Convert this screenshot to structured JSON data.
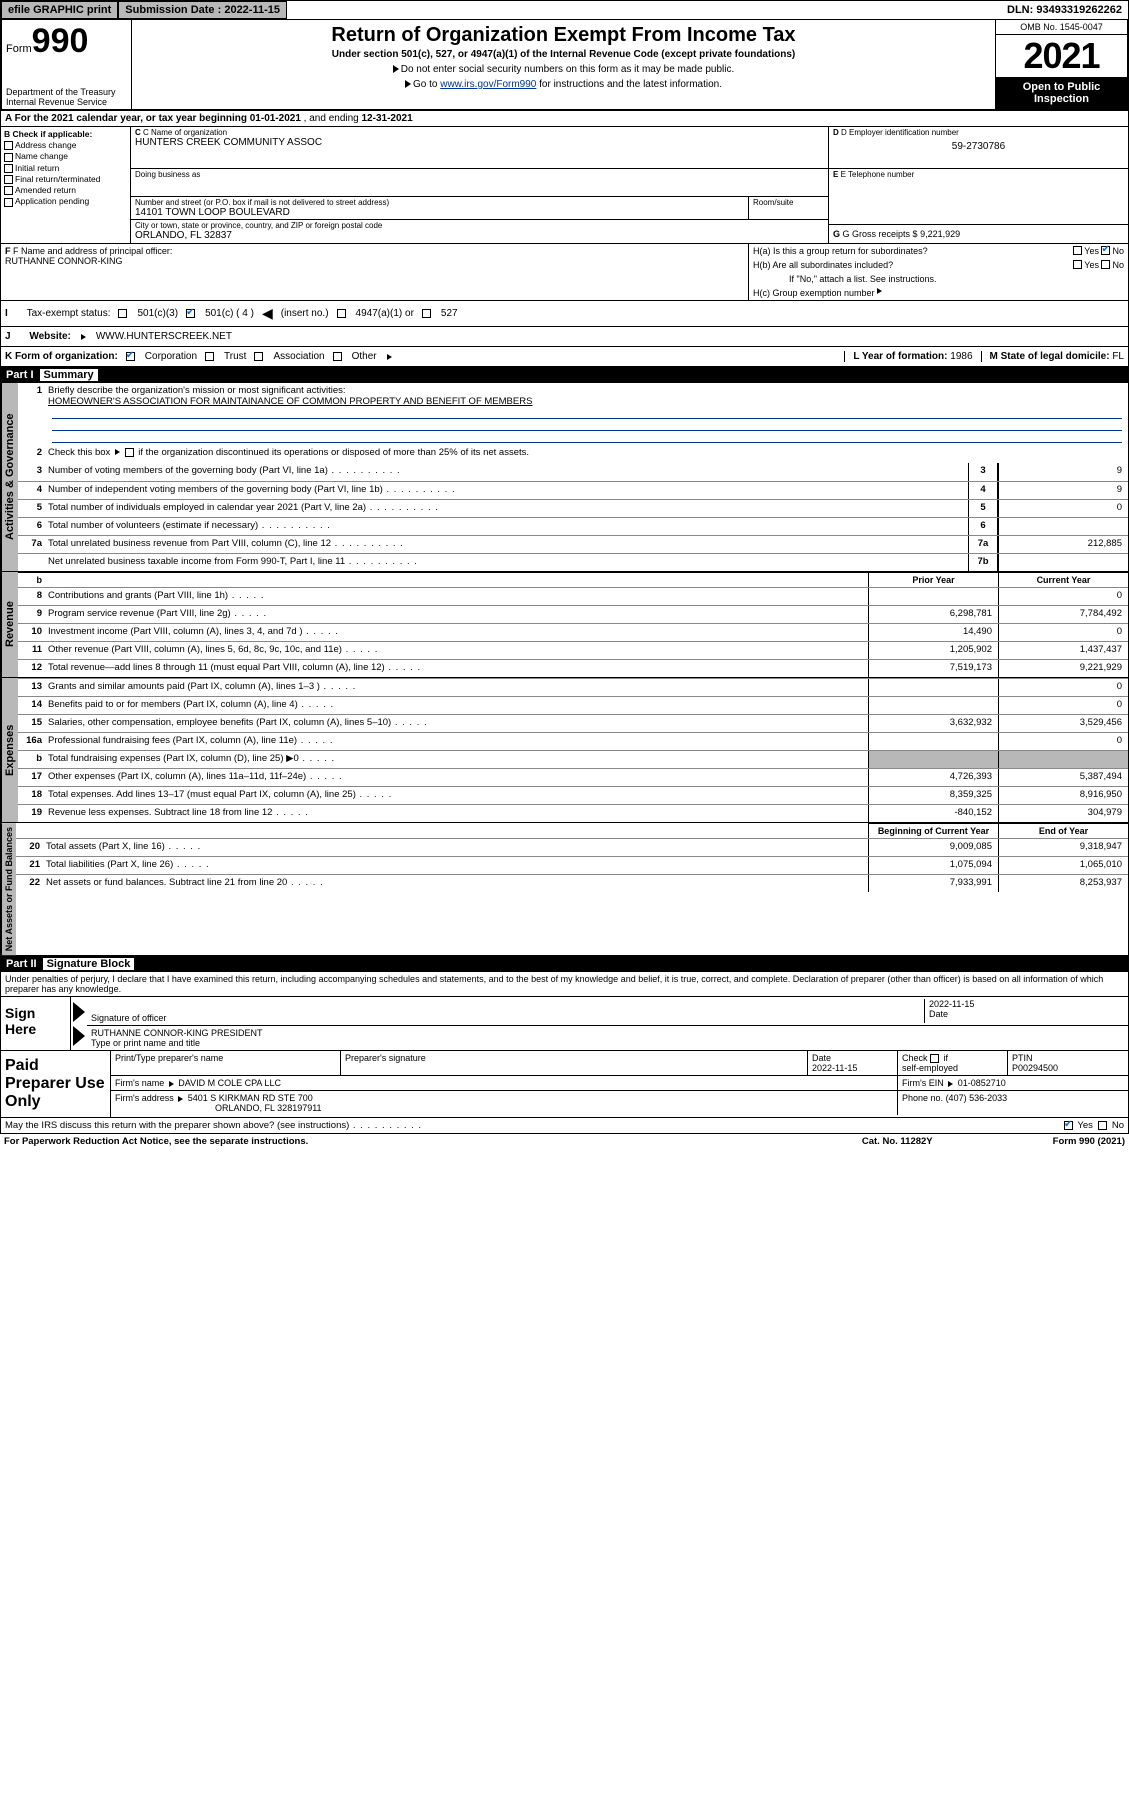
{
  "top": {
    "efile": "efile GRAPHIC print",
    "sub_date_label": "Submission Date :",
    "sub_date": "2022-11-15",
    "dln_label": "DLN:",
    "dln": "93493319262262"
  },
  "header": {
    "form_prefix": "Form",
    "form_no": "990",
    "dept": "Department of the Treasury",
    "irs": "Internal Revenue Service",
    "title": "Return of Organization Exempt From Income Tax",
    "sub": "Under section 501(c), 527, or 4947(a)(1) of the Internal Revenue Code (except private foundations)",
    "note1": "Do not enter social security numbers on this form as it may be made public.",
    "note2_pre": "Go to ",
    "note2_link": "www.irs.gov/Form990",
    "note2_post": " for instructions and the latest information.",
    "omb": "OMB No. 1545-0047",
    "year": "2021",
    "open1": "Open to Public",
    "open2": "Inspection"
  },
  "rowA": {
    "label": "A For the 2021 calendar year, or tax year beginning ",
    "begin": "01-01-2021",
    "mid": " , and ending ",
    "end": "12-31-2021"
  },
  "colB": {
    "title": "B Check if applicable:",
    "items": [
      "Address change",
      "Name change",
      "Initial return",
      "Final return/terminated",
      "Amended return",
      "Application pending"
    ]
  },
  "colC": {
    "name_lbl": "C Name of organization",
    "name": "HUNTERS CREEK COMMUNITY ASSOC",
    "dba_lbl": "Doing business as",
    "dba": "",
    "addr_lbl": "Number and street (or P.O. box if mail is not delivered to street address)",
    "room_lbl": "Room/suite",
    "addr": "14101 TOWN LOOP BOULEVARD",
    "city_lbl": "City or town, state or province, country, and ZIP or foreign postal code",
    "city": "ORLANDO, FL  32837"
  },
  "colD": {
    "lbl": "D Employer identification number",
    "val": "59-2730786"
  },
  "colE": {
    "lbl": "E Telephone number",
    "val": ""
  },
  "colG": {
    "lbl": "G Gross receipts $",
    "val": "9,221,929"
  },
  "rowF": {
    "lbl": "F Name and address of principal officer:",
    "val": "RUTHANNE CONNOR-KING"
  },
  "rowH": {
    "ha": "H(a)  Is this a group return for subordinates?",
    "hb": "H(b)  Are all subordinates included?",
    "hb_note": "If \"No,\" attach a list. See instructions.",
    "hc": "H(c)  Group exemption number",
    "yes": "Yes",
    "no": "No"
  },
  "rowI": {
    "lbl": "Tax-exempt status:",
    "o1": "501(c)(3)",
    "o2": "501(c) ( 4 )",
    "o2_note": "(insert no.)",
    "o3": "4947(a)(1) or",
    "o4": "527"
  },
  "rowJ": {
    "lbl": "Website:",
    "val": "WWW.HUNTERSCREEK.NET"
  },
  "rowK": {
    "lbl": "K Form of organization:",
    "o1": "Corporation",
    "o2": "Trust",
    "o3": "Association",
    "o4": "Other"
  },
  "rowL": {
    "lbl": "L Year of formation:",
    "val": "1986"
  },
  "rowM": {
    "lbl": "M State of legal domicile:",
    "val": "FL"
  },
  "part1": {
    "num": "Part I",
    "title": "Summary"
  },
  "summary": {
    "q1": "Briefly describe the organization's mission or most significant activities:",
    "mission": "HOMEOWNER'S ASSOCIATION FOR MAINTAINANCE OF COMMON PROPERTY AND BENEFIT OF MEMBERS",
    "q2": "Check this box      if the organization discontinued its operations or disposed of more than 25% of its net assets.",
    "lines": [
      {
        "n": "3",
        "d": "Number of voting members of the governing body (Part VI, line 1a)",
        "box": "3",
        "v": "9"
      },
      {
        "n": "4",
        "d": "Number of independent voting members of the governing body (Part VI, line 1b)",
        "box": "4",
        "v": "9"
      },
      {
        "n": "5",
        "d": "Total number of individuals employed in calendar year 2021 (Part V, line 2a)",
        "box": "5",
        "v": "0"
      },
      {
        "n": "6",
        "d": "Total number of volunteers (estimate if necessary)",
        "box": "6",
        "v": ""
      },
      {
        "n": "7a",
        "d": "Total unrelated business revenue from Part VIII, column (C), line 12",
        "box": "7a",
        "v": "212,885"
      },
      {
        "n": "",
        "d": "Net unrelated business taxable income from Form 990-T, Part I, line 11",
        "box": "7b",
        "v": ""
      }
    ],
    "col_prior": "Prior Year",
    "col_curr": "Current Year",
    "rev": [
      {
        "n": "8",
        "d": "Contributions and grants (Part VIII, line 1h)",
        "p": "",
        "c": "0"
      },
      {
        "n": "9",
        "d": "Program service revenue (Part VIII, line 2g)",
        "p": "6,298,781",
        "c": "7,784,492"
      },
      {
        "n": "10",
        "d": "Investment income (Part VIII, column (A), lines 3, 4, and 7d )",
        "p": "14,490",
        "c": "0"
      },
      {
        "n": "11",
        "d": "Other revenue (Part VIII, column (A), lines 5, 6d, 8c, 9c, 10c, and 11e)",
        "p": "1,205,902",
        "c": "1,437,437"
      },
      {
        "n": "12",
        "d": "Total revenue—add lines 8 through 11 (must equal Part VIII, column (A), line 12)",
        "p": "7,519,173",
        "c": "9,221,929"
      }
    ],
    "exp": [
      {
        "n": "13",
        "d": "Grants and similar amounts paid (Part IX, column (A), lines 1–3 )",
        "p": "",
        "c": "0"
      },
      {
        "n": "14",
        "d": "Benefits paid to or for members (Part IX, column (A), line 4)",
        "p": "",
        "c": "0"
      },
      {
        "n": "15",
        "d": "Salaries, other compensation, employee benefits (Part IX, column (A), lines 5–10)",
        "p": "3,632,932",
        "c": "3,529,456"
      },
      {
        "n": "16a",
        "d": "Professional fundraising fees (Part IX, column (A), line 11e)",
        "p": "",
        "c": "0"
      },
      {
        "n": "b",
        "d": "Total fundraising expenses (Part IX, column (D), line 25) ▶0",
        "p": "shade",
        "c": "shade"
      },
      {
        "n": "17",
        "d": "Other expenses (Part IX, column (A), lines 11a–11d, 11f–24e)",
        "p": "4,726,393",
        "c": "5,387,494"
      },
      {
        "n": "18",
        "d": "Total expenses. Add lines 13–17 (must equal Part IX, column (A), line 25)",
        "p": "8,359,325",
        "c": "8,916,950"
      },
      {
        "n": "19",
        "d": "Revenue less expenses. Subtract line 18 from line 12",
        "p": "-840,152",
        "c": "304,979"
      }
    ],
    "col_boy": "Beginning of Current Year",
    "col_eoy": "End of Year",
    "net": [
      {
        "n": "20",
        "d": "Total assets (Part X, line 16)",
        "p": "9,009,085",
        "c": "9,318,947"
      },
      {
        "n": "21",
        "d": "Total liabilities (Part X, line 26)",
        "p": "1,075,094",
        "c": "1,065,010"
      },
      {
        "n": "22",
        "d": "Net assets or fund balances. Subtract line 21 from line 20",
        "p": "7,933,991",
        "c": "8,253,937"
      }
    ],
    "tabs": {
      "ag": "Activities & Governance",
      "rev": "Revenue",
      "exp": "Expenses",
      "net": "Net Assets or Fund Balances"
    }
  },
  "part2": {
    "num": "Part II",
    "title": "Signature Block"
  },
  "sig": {
    "decl": "Under penalties of perjury, I declare that I have examined this return, including accompanying schedules and statements, and to the best of my knowledge and belief, it is true, correct, and complete. Declaration of preparer (other than officer) is based on all information of which preparer has any knowledge.",
    "sign_here": "Sign Here",
    "sig_officer": "Signature of officer",
    "date": "Date",
    "date_val": "2022-11-15",
    "name_title": "RUTHANNE CONNOR-KING  PRESIDENT",
    "type_name": "Type or print name and title"
  },
  "prep": {
    "label": "Paid Preparer Use Only",
    "h1": "Print/Type preparer's name",
    "h2": "Preparer's signature",
    "h3": "Date",
    "date": "2022-11-15",
    "chk_lbl": "Check        if self-employed",
    "ptin_lbl": "PTIN",
    "ptin": "P00294500",
    "firm_name_lbl": "Firm's name   ",
    "firm_name": "DAVID M COLE CPA LLC",
    "firm_ein_lbl": "Firm's EIN ",
    "firm_ein": "01-0852710",
    "firm_addr_lbl": "Firm's address ",
    "firm_addr1": "5401 S KIRKMAN RD STE 700",
    "firm_addr2": "ORLANDO, FL  328197911",
    "phone_lbl": "Phone no.",
    "phone": "(407) 536-2033"
  },
  "bottom": {
    "q": "May the IRS discuss this return with the preparer shown above? (see instructions)",
    "yes": "Yes",
    "no": "No"
  },
  "footer": {
    "left": "For Paperwork Reduction Act Notice, see the separate instructions.",
    "mid": "Cat. No. 11282Y",
    "right": "Form 990 (2021)"
  }
}
